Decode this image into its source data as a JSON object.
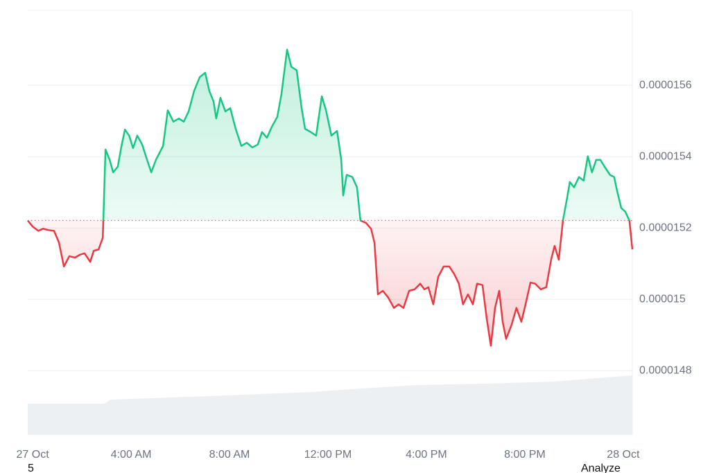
{
  "chart_data": {
    "type": "baseline-area",
    "x": [
      -0.2,
      0,
      0.23,
      0.42,
      0.65,
      0.87,
      1.07,
      1.27,
      1.49,
      1.72,
      1.92,
      2.11,
      2.34,
      2.48,
      2.68,
      2.85,
      2.96,
      3.13,
      3.27,
      3.46,
      3.61,
      3.75,
      3.92,
      4.08,
      4.25,
      4.45,
      4.65,
      4.82,
      5.01,
      5.3,
      5.49,
      5.72,
      5.94,
      6.14,
      6.34,
      6.56,
      6.79,
      7.01,
      7.18,
      7.35,
      7.46,
      7.63,
      7.83,
      8.03,
      8.25,
      8.48,
      8.7,
      8.93,
      9.15,
      9.32,
      9.52,
      9.72,
      9.94,
      10.11,
      10.34,
      10.51,
      10.73,
      10.93,
      11.07,
      11.3,
      11.52,
      11.75,
      11.92,
      12.14,
      12.37,
      12.54,
      12.62,
      12.76,
      12.99,
      13.18,
      13.32,
      13.55,
      13.75,
      13.89,
      14.03,
      14.23,
      14.45,
      14.68,
      14.87,
      15.07,
      15.3,
      15.52,
      15.75,
      15.92,
      16.08,
      16.28,
      16.48,
      16.7,
      16.93,
      17.13,
      17.32,
      17.49,
      17.69,
      17.89,
      18.06,
      18.28,
      18.45,
      18.62,
      18.79,
      18.96,
      19.1,
      19.24,
      19.46,
      19.66,
      19.86,
      20.03,
      20.23,
      20.42,
      20.65,
      20.87,
      21.07,
      21.21,
      21.38,
      21.55,
      21.72,
      21.83,
      22,
      22.2,
      22.39,
      22.56,
      22.73,
      22.9,
      23.07,
      23.24,
      23.46,
      23.63,
      23.75,
      23.92,
      24.08,
      24.25,
      24.37
    ],
    "values": [
      1.5221e-05,
      1.5204e-05,
      1.5192e-05,
      1.5198e-05,
      1.5194e-05,
      1.5192e-05,
      1.5159e-05,
      1.5092e-05,
      1.5121e-05,
      1.5117e-05,
      1.5125e-05,
      1.5129e-05,
      1.5105e-05,
      1.5136e-05,
      1.514e-05,
      1.5173e-05,
      1.542e-05,
      1.5391e-05,
      1.5356e-05,
      1.5372e-05,
      1.543e-05,
      1.5476e-05,
      1.5459e-05,
      1.5424e-05,
      1.5459e-05,
      1.5434e-05,
      1.5391e-05,
      1.5356e-05,
      1.5391e-05,
      1.543e-05,
      1.553e-05,
      1.5498e-05,
      1.5507e-05,
      1.5498e-05,
      1.5527e-05,
      1.5584e-05,
      1.5623e-05,
      1.5635e-05,
      1.5584e-05,
      1.5555e-05,
      1.5507e-05,
      1.5565e-05,
      1.5527e-05,
      1.5536e-05,
      1.5478e-05,
      1.543e-05,
      1.5439e-05,
      1.5426e-05,
      1.5434e-05,
      1.5469e-05,
      1.5453e-05,
      1.5484e-05,
      1.5511e-05,
      1.5575e-05,
      1.57e-05,
      1.5652e-05,
      1.5642e-05,
      1.5536e-05,
      1.5478e-05,
      1.5469e-05,
      1.5459e-05,
      1.5569e-05,
      1.553e-05,
      1.5459e-05,
      1.5472e-05,
      1.5391e-05,
      1.5291e-05,
      1.5349e-05,
      1.5343e-05,
      1.5314e-05,
      1.5221e-05,
      1.5214e-05,
      1.5198e-05,
      1.5159e-05,
      1.5014e-05,
      1.5024e-05,
      1.5005e-05,
      1.4976e-05,
      1.4986e-05,
      1.4976e-05,
      1.5024e-05,
      1.5028e-05,
      1.5044e-05,
      1.5028e-05,
      1.5034e-05,
      1.4986e-05,
      1.5063e-05,
      1.5092e-05,
      1.5092e-05,
      1.5071e-05,
      1.5044e-05,
      1.4986e-05,
      1.5014e-05,
      1.4986e-05,
      1.5044e-05,
      1.504e-05,
      1.4947e-05,
      1.487e-05,
      1.4976e-05,
      1.5024e-05,
      1.4937e-05,
      1.4889e-05,
      1.4928e-05,
      1.4976e-05,
      1.4937e-05,
      1.4986e-05,
      1.5047e-05,
      1.5044e-05,
      1.5028e-05,
      1.5034e-05,
      1.5111e-05,
      1.515e-05,
      1.5111e-05,
      1.5221e-05,
      1.5285e-05,
      1.5329e-05,
      1.5314e-05,
      1.5343e-05,
      1.5333e-05,
      1.5401e-05,
      1.5356e-05,
      1.5391e-05,
      1.5391e-05,
      1.5372e-05,
      1.5349e-05,
      1.5343e-05,
      1.5304e-05,
      1.5256e-05,
      1.5246e-05,
      1.5221e-05,
      1.514e-05
    ],
    "baseline": 1.5221e-05,
    "up_color": "#16c784",
    "down_color": "#ea3943",
    "xlim": [
      -0.2,
      24.37
    ],
    "xticks": [
      {
        "value": 0,
        "label": "27 Oct"
      },
      {
        "value": 4,
        "label": "4:00 AM"
      },
      {
        "value": 8,
        "label": "8:00 AM"
      },
      {
        "value": 12,
        "label": "12:00 PM"
      },
      {
        "value": 16,
        "label": "4:00 PM"
      },
      {
        "value": 20,
        "label": "8:00 PM"
      },
      {
        "value": 24,
        "label": "28 Oct"
      }
    ],
    "ylim": [
      1.462e-05,
      1.581e-05
    ],
    "yticks": [
      1.48e-05,
      1.5e-05,
      1.52e-05,
      1.54e-05,
      1.56e-05
    ],
    "grid": true
  },
  "footer_left": "5",
  "footer_right": "Analyze"
}
